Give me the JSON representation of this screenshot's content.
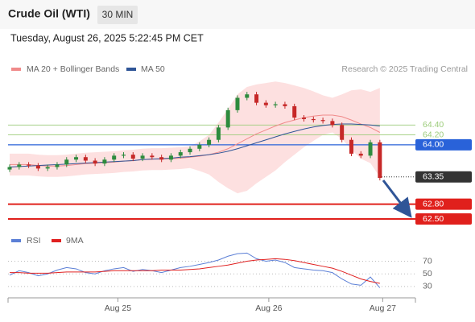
{
  "header": {
    "title": "Crude Oil (WTI)",
    "interval": "30 MIN",
    "datetime": "Tuesday, August 26, 2025 5:22:45 PM CET"
  },
  "chart_data": [
    {
      "type": "candlestick",
      "source": "Research © 2025 Trading Central",
      "xlim": [
        0,
        43
      ],
      "ylim": [
        62.37,
        65.3
      ],
      "up_color": "#2e8b3e",
      "down_color": "#c62828",
      "open": [
        63.5,
        63.55,
        63.6,
        63.58,
        63.52,
        63.55,
        63.6,
        63.7,
        63.75,
        63.68,
        63.62,
        63.7,
        63.78,
        63.8,
        63.72,
        63.78,
        63.75,
        63.7,
        63.78,
        63.85,
        63.92,
        64.0,
        64.1,
        64.35,
        64.7,
        64.95,
        65.02,
        64.85,
        64.8,
        64.82,
        64.78,
        64.55,
        64.52,
        64.5,
        64.48,
        64.4,
        64.1,
        63.82,
        63.78,
        64.05
      ],
      "high": [
        63.6,
        63.65,
        63.65,
        63.63,
        63.6,
        63.65,
        63.75,
        63.8,
        63.8,
        63.73,
        63.75,
        63.83,
        63.85,
        63.85,
        63.83,
        63.83,
        63.8,
        63.83,
        63.9,
        63.97,
        64.05,
        64.15,
        64.4,
        64.75,
        65.0,
        65.07,
        65.07,
        64.9,
        64.87,
        64.87,
        64.83,
        64.6,
        64.57,
        64.55,
        64.53,
        64.45,
        64.15,
        63.87,
        64.1,
        64.1
      ],
      "low": [
        63.45,
        63.5,
        63.53,
        63.47,
        63.47,
        63.5,
        63.55,
        63.65,
        63.63,
        63.57,
        63.57,
        63.65,
        63.73,
        63.67,
        63.67,
        63.7,
        63.65,
        63.65,
        63.73,
        63.8,
        63.87,
        63.95,
        64.05,
        64.3,
        64.65,
        64.9,
        64.8,
        64.75,
        64.75,
        64.73,
        64.5,
        64.47,
        64.45,
        64.43,
        64.35,
        64.05,
        63.77,
        63.73,
        63.73,
        63.28
      ],
      "close": [
        63.55,
        63.6,
        63.58,
        63.52,
        63.55,
        63.6,
        63.7,
        63.75,
        63.68,
        63.62,
        63.7,
        63.78,
        63.8,
        63.72,
        63.78,
        63.75,
        63.7,
        63.78,
        63.85,
        63.92,
        64.0,
        64.1,
        64.35,
        64.7,
        64.95,
        65.02,
        64.85,
        64.8,
        64.82,
        64.78,
        64.55,
        64.52,
        64.5,
        64.48,
        64.4,
        64.1,
        63.82,
        63.78,
        64.05,
        63.33
      ],
      "series": [
        {
          "name": "MA 20 + Bollinger Bands",
          "color": "#f08a8a",
          "band_color": "#fde0e0",
          "values": [
            63.6,
            63.6,
            63.6,
            63.58,
            63.57,
            63.57,
            63.58,
            63.6,
            63.62,
            63.63,
            63.64,
            63.65,
            63.67,
            63.68,
            63.7,
            63.71,
            63.71,
            63.72,
            63.73,
            63.75,
            63.77,
            63.8,
            63.85,
            63.92,
            64.02,
            64.12,
            64.22,
            64.3,
            64.38,
            64.45,
            64.5,
            64.55,
            64.58,
            64.6,
            64.6,
            64.57,
            64.5,
            64.42,
            64.35,
            64.25
          ],
          "upper": [
            63.82,
            63.82,
            63.82,
            63.8,
            63.79,
            63.79,
            63.8,
            63.82,
            63.84,
            63.85,
            63.86,
            63.87,
            63.89,
            63.9,
            63.92,
            63.93,
            63.93,
            63.94,
            63.95,
            63.97,
            64.07,
            64.2,
            64.45,
            64.72,
            65.02,
            65.17,
            65.22,
            65.25,
            65.28,
            65.25,
            65.2,
            65.15,
            65.08,
            65.0,
            64.95,
            65.02,
            65.1,
            65.12,
            65.07,
            65.15
          ],
          "lower": [
            63.38,
            63.38,
            63.38,
            63.36,
            63.35,
            63.35,
            63.36,
            63.38,
            63.4,
            63.41,
            63.42,
            63.43,
            63.45,
            63.46,
            63.48,
            63.49,
            63.49,
            63.5,
            63.51,
            63.53,
            63.47,
            63.4,
            63.25,
            63.12,
            63.02,
            63.07,
            63.22,
            63.35,
            63.48,
            63.65,
            63.8,
            63.95,
            64.08,
            64.2,
            64.25,
            64.12,
            63.9,
            63.72,
            63.63,
            63.35
          ]
        },
        {
          "name": "MA 50",
          "color": "#2f5597",
          "values": [
            63.55,
            63.56,
            63.57,
            63.58,
            63.59,
            63.6,
            63.61,
            63.62,
            63.63,
            63.64,
            63.65,
            63.66,
            63.67,
            63.68,
            63.7,
            63.71,
            63.72,
            63.73,
            63.75,
            63.76,
            63.78,
            63.8,
            63.83,
            63.87,
            63.92,
            63.98,
            64.04,
            64.1,
            64.16,
            64.22,
            64.27,
            64.32,
            64.36,
            64.39,
            64.41,
            64.42,
            64.42,
            64.41,
            64.4,
            64.38
          ]
        }
      ],
      "levels": [
        {
          "value": 64.4,
          "label": "64.40",
          "color": "#9ccc7a",
          "style": "text"
        },
        {
          "value": 64.2,
          "label": "64.20",
          "color": "#9ccc7a",
          "style": "text"
        },
        {
          "value": 64.0,
          "label": "64.00",
          "color": "#2962d9",
          "style": "box"
        },
        {
          "value": 63.35,
          "label": "63.35",
          "color": "#333333",
          "style": "dotted"
        },
        {
          "value": 62.8,
          "label": "62.80",
          "color": "#e0201c",
          "style": "box"
        },
        {
          "value": 62.5,
          "label": "62.50",
          "color": "#e0201c",
          "style": "box"
        }
      ]
    },
    {
      "type": "line",
      "xlim": [
        0,
        43
      ],
      "ylim": [
        12,
        86
      ],
      "yticks": [
        70,
        50,
        30
      ],
      "xticks": [
        {
          "value": 11.4,
          "label": "Aug 25"
        },
        {
          "value": 27.3,
          "label": "Aug 26"
        },
        {
          "value": 39.3,
          "label": "Aug 27"
        }
      ],
      "series": [
        {
          "name": "RSI",
          "color": "#5b7fd6",
          "values": [
            48,
            55,
            52,
            47,
            50,
            56,
            60,
            58,
            52,
            50,
            55,
            58,
            60,
            54,
            57,
            55,
            52,
            56,
            60,
            62,
            65,
            68,
            72,
            78,
            82,
            83,
            74,
            70,
            72,
            68,
            60,
            58,
            56,
            55,
            52,
            42,
            34,
            32,
            45,
            28
          ]
        },
        {
          "name": "9MA",
          "color": "#e02020",
          "values": [
            52,
            52,
            51,
            51,
            51,
            52,
            53,
            53,
            53,
            53,
            54,
            55,
            55,
            55,
            55,
            55,
            56,
            56,
            56,
            57,
            58,
            60,
            62,
            64,
            67,
            70,
            72,
            73,
            74,
            73,
            71,
            68,
            65,
            62,
            59,
            54,
            48,
            42,
            38,
            35
          ]
        }
      ]
    }
  ]
}
